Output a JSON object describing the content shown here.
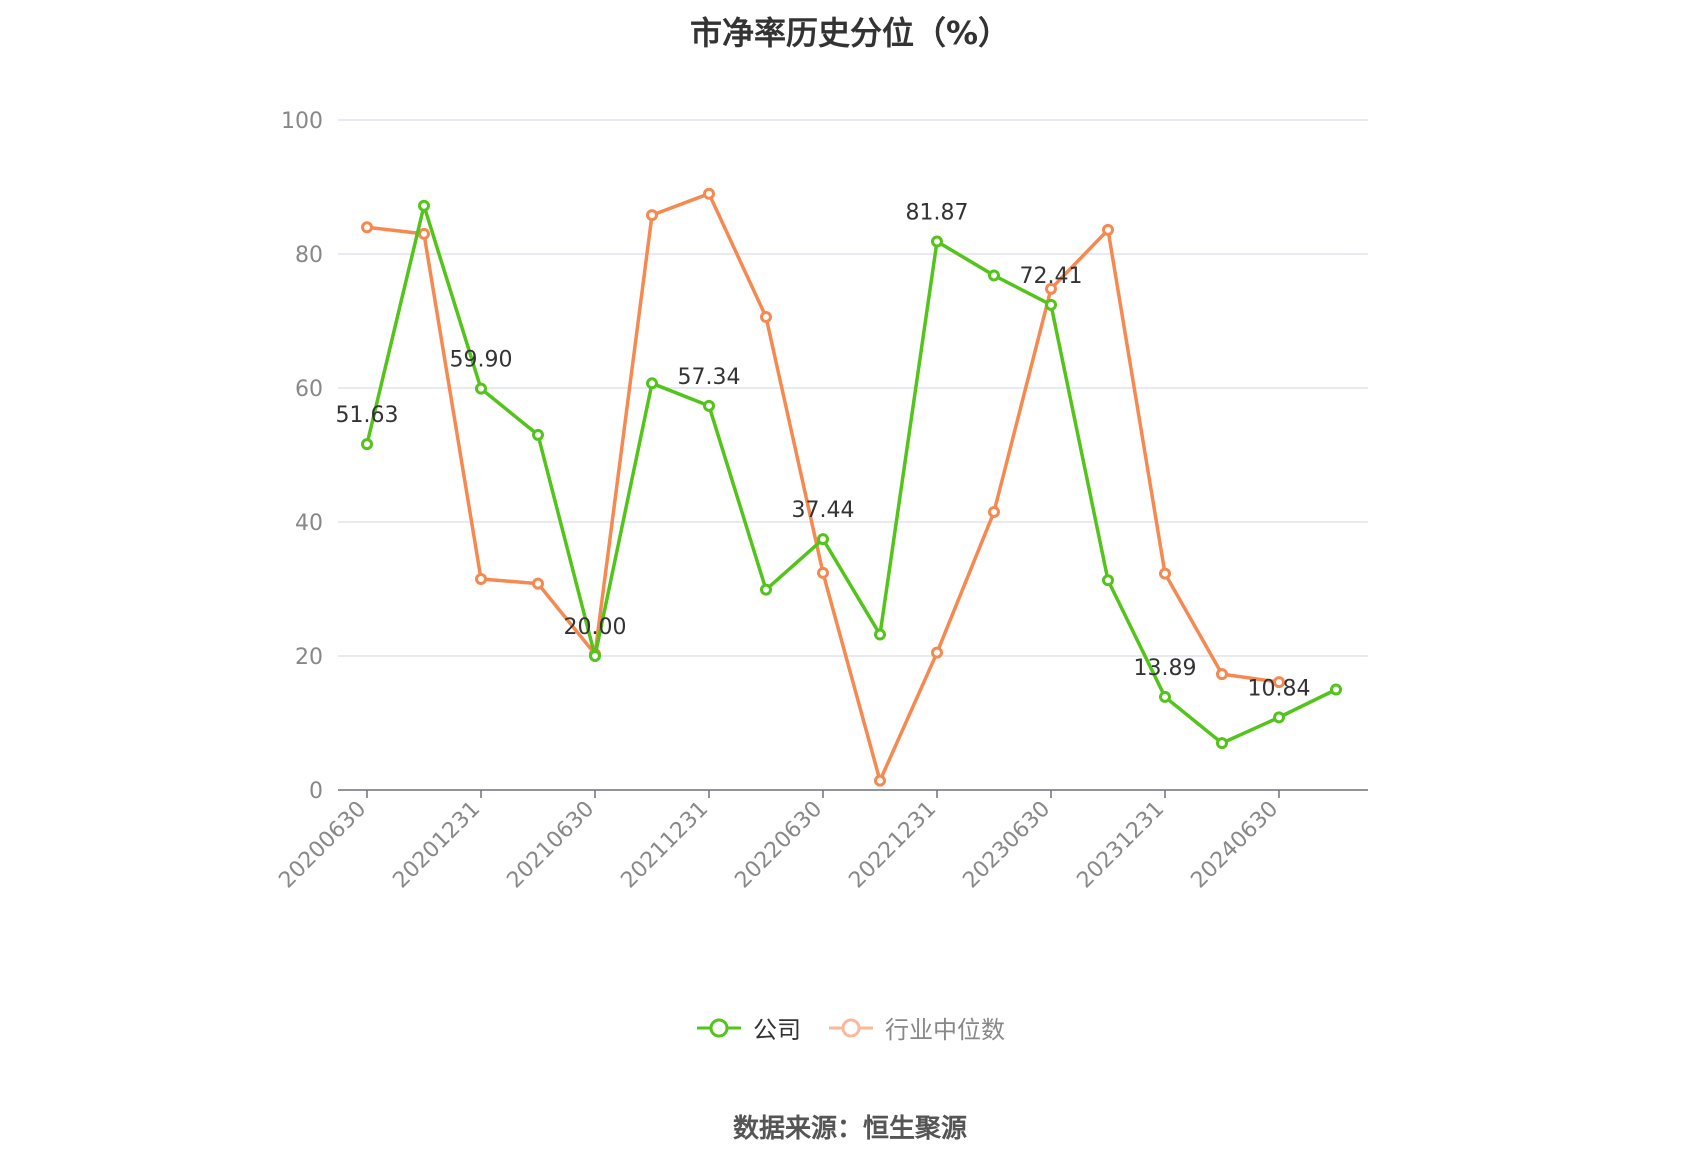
{
  "chart_data": {
    "type": "line",
    "title": "市净率历史分位（%）",
    "source": "数据来源：恒生聚源",
    "ylim": [
      0,
      100
    ],
    "y_ticks": [
      0,
      20,
      40,
      60,
      80,
      100
    ],
    "x": [
      "20200630",
      "20200930",
      "20201231",
      "20210331",
      "20210630",
      "20210930",
      "20211231",
      "20220331",
      "20220630",
      "20220930",
      "20221231",
      "20230331",
      "20230630",
      "20230930",
      "20231231",
      "20240331",
      "20240630",
      "20240930"
    ],
    "x_tick_labels": [
      "20200630",
      "20201231",
      "20210630",
      "20211231",
      "20220630",
      "20221231",
      "20230630",
      "20231231",
      "20240630"
    ],
    "grid": true,
    "legend_position": "bottom",
    "series": [
      {
        "name": "公司",
        "color": "#52c41a",
        "values": [
          51.63,
          87.2,
          59.9,
          53.0,
          20.0,
          60.7,
          57.34,
          29.9,
          37.44,
          23.2,
          81.87,
          76.8,
          72.41,
          31.3,
          13.89,
          7.0,
          10.84,
          15.0
        ],
        "data_labels": [
          {
            "index": 0,
            "text": "51.63"
          },
          {
            "index": 2,
            "text": "59.90"
          },
          {
            "index": 4,
            "text": "20.00"
          },
          {
            "index": 6,
            "text": "57.34"
          },
          {
            "index": 8,
            "text": "37.44"
          },
          {
            "index": 10,
            "text": "81.87"
          },
          {
            "index": 12,
            "text": "72.41"
          },
          {
            "index": 14,
            "text": "13.89"
          },
          {
            "index": 16,
            "text": "10.84"
          }
        ]
      },
      {
        "name": "行业中位数",
        "color": "#f5894f",
        "values": [
          84.0,
          83.0,
          31.5,
          30.8,
          20.3,
          85.8,
          89.0,
          70.6,
          32.4,
          1.4,
          20.5,
          41.5,
          74.8,
          83.6,
          32.3,
          17.3,
          16.1,
          null
        ]
      }
    ]
  }
}
